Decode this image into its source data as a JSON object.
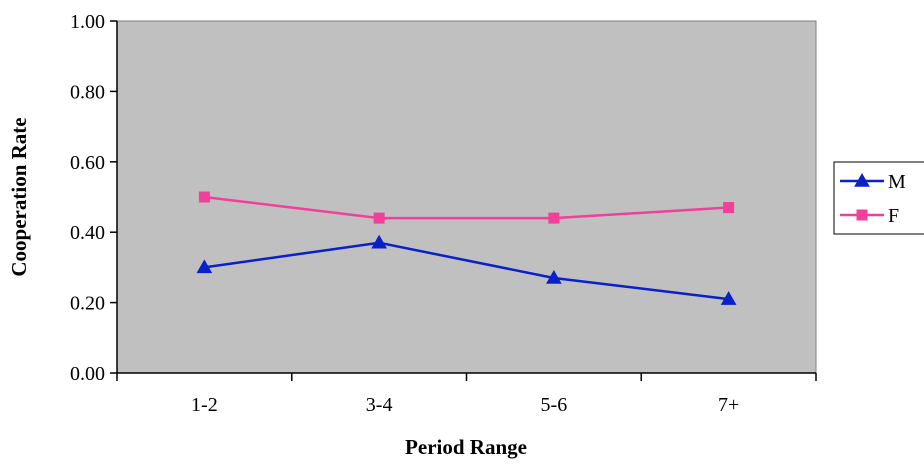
{
  "chart_data": {
    "type": "line",
    "title": "",
    "xlabel": "Period Range",
    "ylabel": "Cooperation Rate",
    "categories": [
      "1-2",
      "3-4",
      "5-6",
      "7+"
    ],
    "ylim": [
      0,
      1
    ],
    "yticks": [
      "0.00",
      "0.20",
      "0.40",
      "0.60",
      "0.80",
      "1.00"
    ],
    "grid": false,
    "legend_position": "right",
    "plot_background": "#c0c0c0",
    "series": [
      {
        "name": "M",
        "values": [
          0.3,
          0.37,
          0.27,
          0.21
        ],
        "color": "#0a20c8",
        "marker": "triangle"
      },
      {
        "name": "F",
        "values": [
          0.5,
          0.44,
          0.44,
          0.47
        ],
        "color": "#f0409c",
        "marker": "square"
      }
    ]
  }
}
